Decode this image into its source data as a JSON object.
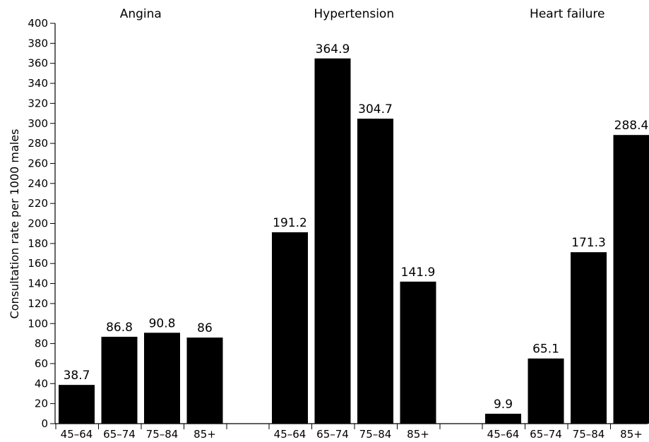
{
  "chart_data": {
    "type": "bar",
    "ylabel": "Consultation rate per 1000 males",
    "xlabel": "",
    "ylim": [
      0,
      400
    ],
    "y_ticks": [
      0,
      20,
      40,
      60,
      80,
      100,
      120,
      140,
      160,
      180,
      200,
      220,
      240,
      260,
      280,
      300,
      320,
      340,
      360,
      380,
      400
    ],
    "grid": false,
    "bar_color": "#000000",
    "categories": [
      "45–64",
      "65–74",
      "75–84",
      "85+"
    ],
    "groups": [
      {
        "name": "Angina",
        "values": [
          38.7,
          86.8,
          90.8,
          86
        ],
        "labels": [
          "38.7",
          "86.8",
          "90.8",
          "86"
        ]
      },
      {
        "name": "Hypertension",
        "values": [
          191.2,
          364.9,
          304.7,
          141.9
        ],
        "labels": [
          "191.2",
          "364.9",
          "304.7",
          "141.9"
        ]
      },
      {
        "name": "Heart failure",
        "values": [
          9.9,
          65.1,
          171.3,
          288.4
        ],
        "labels": [
          "9.9",
          "65.1",
          "171.3",
          "288.4"
        ]
      }
    ]
  }
}
